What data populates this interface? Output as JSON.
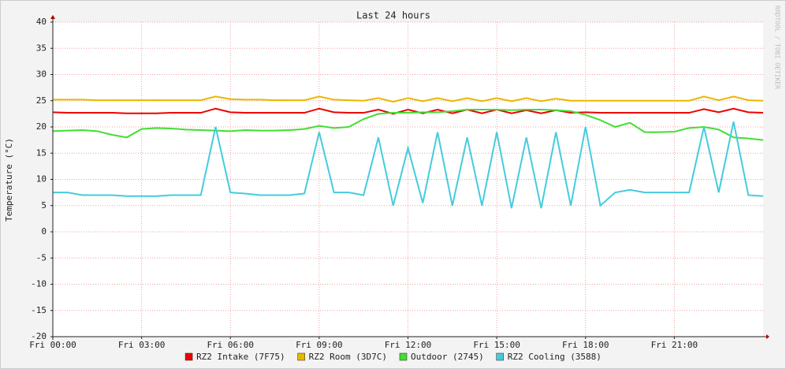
{
  "chart_data": {
    "type": "line",
    "title": "Last 24 hours",
    "y_label": "Temperature (°C)",
    "watermark": "RRDTOOL / TOBI OETIKER",
    "x": [
      0,
      0.5,
      1,
      1.5,
      2,
      2.5,
      3,
      3.5,
      4,
      4.5,
      5,
      5.5,
      6,
      6.5,
      7,
      7.5,
      8,
      8.5,
      9,
      9.5,
      10,
      10.5,
      11,
      11.5,
      12,
      12.5,
      13,
      13.5,
      14,
      14.5,
      15,
      15.5,
      16,
      16.5,
      17,
      17.5,
      18,
      18.5,
      19,
      19.5,
      20,
      20.5,
      21,
      21.5,
      22,
      22.5,
      23,
      23.5,
      24
    ],
    "xlim": [
      0,
      24
    ],
    "xticks": [
      {
        "value": 0,
        "label": "Fri 00:00"
      },
      {
        "value": 3,
        "label": "Fri 03:00"
      },
      {
        "value": 6,
        "label": "Fri 06:00"
      },
      {
        "value": 9,
        "label": "Fri 09:00"
      },
      {
        "value": 12,
        "label": "Fri 12:00"
      },
      {
        "value": 15,
        "label": "Fri 15:00"
      },
      {
        "value": 18,
        "label": "Fri 18:00"
      },
      {
        "value": 21,
        "label": "Fri 21:00"
      }
    ],
    "ylim": [
      -20,
      40
    ],
    "yticks": [
      -20,
      -15,
      -10,
      -5,
      0,
      5,
      10,
      15,
      20,
      25,
      30,
      35,
      40
    ],
    "grid": true,
    "series": [
      {
        "name": "RZ2 Intake (7F75)",
        "color": "#ee0000",
        "values": [
          22.8,
          22.7,
          22.7,
          22.7,
          22.7,
          22.6,
          22.6,
          22.6,
          22.7,
          22.7,
          22.7,
          23.5,
          22.8,
          22.7,
          22.7,
          22.7,
          22.7,
          22.7,
          23.5,
          22.8,
          22.7,
          22.7,
          23.3,
          22.5,
          23.3,
          22.6,
          23.3,
          22.6,
          23.3,
          22.6,
          23.3,
          22.6,
          23.2,
          22.6,
          23.2,
          22.7,
          22.8,
          22.7,
          22.7,
          22.7,
          22.7,
          22.7,
          22.7,
          22.7,
          23.4,
          22.8,
          23.5,
          22.8,
          22.7
        ]
      },
      {
        "name": "RZ2 Room (3D7C)",
        "color": "#e8b800",
        "values": [
          25.2,
          25.2,
          25.2,
          25.1,
          25.1,
          25.1,
          25.1,
          25.1,
          25.1,
          25.1,
          25.1,
          25.8,
          25.3,
          25.2,
          25.2,
          25.1,
          25.1,
          25.1,
          25.8,
          25.2,
          25.1,
          25.0,
          25.5,
          24.8,
          25.5,
          24.9,
          25.5,
          24.9,
          25.5,
          24.9,
          25.5,
          24.9,
          25.5,
          24.9,
          25.4,
          25.0,
          25.0,
          25.0,
          25.0,
          25.0,
          25.0,
          25.0,
          25.0,
          25.0,
          25.8,
          25.1,
          25.8,
          25.1,
          25.0
        ]
      },
      {
        "name": "Outdoor (2745)",
        "color": "#44dd33",
        "values": [
          19.2,
          19.3,
          19.4,
          19.2,
          18.5,
          18.0,
          19.6,
          19.8,
          19.7,
          19.5,
          19.4,
          19.3,
          19.2,
          19.4,
          19.3,
          19.3,
          19.4,
          19.6,
          20.2,
          19.8,
          20.0,
          21.5,
          22.5,
          22.7,
          22.7,
          22.8,
          22.8,
          23.0,
          23.3,
          23.3,
          23.3,
          23.2,
          23.3,
          23.3,
          23.2,
          23.0,
          22.3,
          21.3,
          20.0,
          20.8,
          19.0,
          19.0,
          19.1,
          19.8,
          20.0,
          19.5,
          18.0,
          17.8,
          17.5
        ]
      },
      {
        "name": "RZ2 Cooling (3588)",
        "color": "#44ccdd",
        "values": [
          7.5,
          7.5,
          7.0,
          7.0,
          7.0,
          6.8,
          6.8,
          6.8,
          7.0,
          7.0,
          7.0,
          20.0,
          7.5,
          7.3,
          7.0,
          7.0,
          7.0,
          7.3,
          19.0,
          7.5,
          7.5,
          7.0,
          18.0,
          5.0,
          16.0,
          5.5,
          19.0,
          5.0,
          18.0,
          5.0,
          19.0,
          4.5,
          18.0,
          4.5,
          19.0,
          5.0,
          20.0,
          5.0,
          7.5,
          8.0,
          7.5,
          7.5,
          7.5,
          7.5,
          20.0,
          7.5,
          21.0,
          7.0,
          6.8
        ]
      }
    ]
  }
}
